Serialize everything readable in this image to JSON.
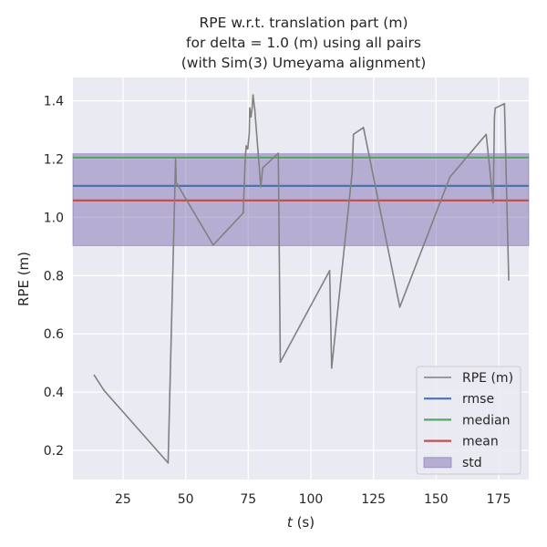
{
  "chart_data": {
    "type": "line",
    "title_lines": [
      "RPE w.r.t. translation part (m)",
      "for delta = 1.0 (m) using all pairs",
      "(with Sim(3) Umeyama alignment)"
    ],
    "xlabel_italic": "t",
    "xlabel_rest": " (s)",
    "ylabel": "RPE (m)",
    "xlim": [
      5,
      187
    ],
    "ylim": [
      0.1,
      1.48
    ],
    "xticks": [
      25,
      50,
      75,
      100,
      125,
      150,
      175
    ],
    "yticks": [
      0.2,
      0.4,
      0.6,
      0.8,
      1.0,
      1.2,
      1.4
    ],
    "ytick_labels": [
      "0.2",
      "0.4",
      "0.6",
      "0.8",
      "1.0",
      "1.2",
      "1.4"
    ],
    "grid": true,
    "legend_position": "lower right",
    "series": [
      {
        "name": "RPE (m)",
        "color": "#808080",
        "points": [
          [
            13.5,
            0.458
          ],
          [
            17.5,
            0.405
          ],
          [
            43,
            0.157
          ],
          [
            46,
            1.205
          ],
          [
            46.2,
            1.12
          ],
          [
            61,
            0.905
          ],
          [
            73,
            1.015
          ],
          [
            73.8,
            1.205
          ],
          [
            74.2,
            1.245
          ],
          [
            74.8,
            1.235
          ],
          [
            75.4,
            1.29
          ],
          [
            75.6,
            1.375
          ],
          [
            76.1,
            1.345
          ],
          [
            76.6,
            1.38
          ],
          [
            76.9,
            1.42
          ],
          [
            77.6,
            1.37
          ],
          [
            80,
            1.105
          ],
          [
            80.8,
            1.17
          ],
          [
            87,
            1.22
          ],
          [
            87.8,
            0.503
          ],
          [
            107.5,
            0.817
          ],
          [
            108.3,
            0.483
          ],
          [
            116.5,
            1.155
          ],
          [
            117,
            1.285
          ],
          [
            121,
            1.308
          ],
          [
            135.5,
            0.692
          ],
          [
            155.5,
            1.138
          ],
          [
            170,
            1.285
          ],
          [
            172.8,
            1.05
          ],
          [
            173.3,
            1.345
          ],
          [
            173.6,
            1.375
          ],
          [
            177.3,
            1.39
          ],
          [
            179,
            0.785
          ]
        ]
      }
    ],
    "stats": [
      {
        "name": "rmse",
        "value": 1.108,
        "color": "#4c72b0"
      },
      {
        "name": "median",
        "value": 1.205,
        "color": "#55a868"
      },
      {
        "name": "mean",
        "value": 1.058,
        "color": "#c44e52"
      }
    ],
    "std_band": {
      "name": "std",
      "low": 0.903,
      "high": 1.218,
      "color": "#8172b2"
    }
  }
}
